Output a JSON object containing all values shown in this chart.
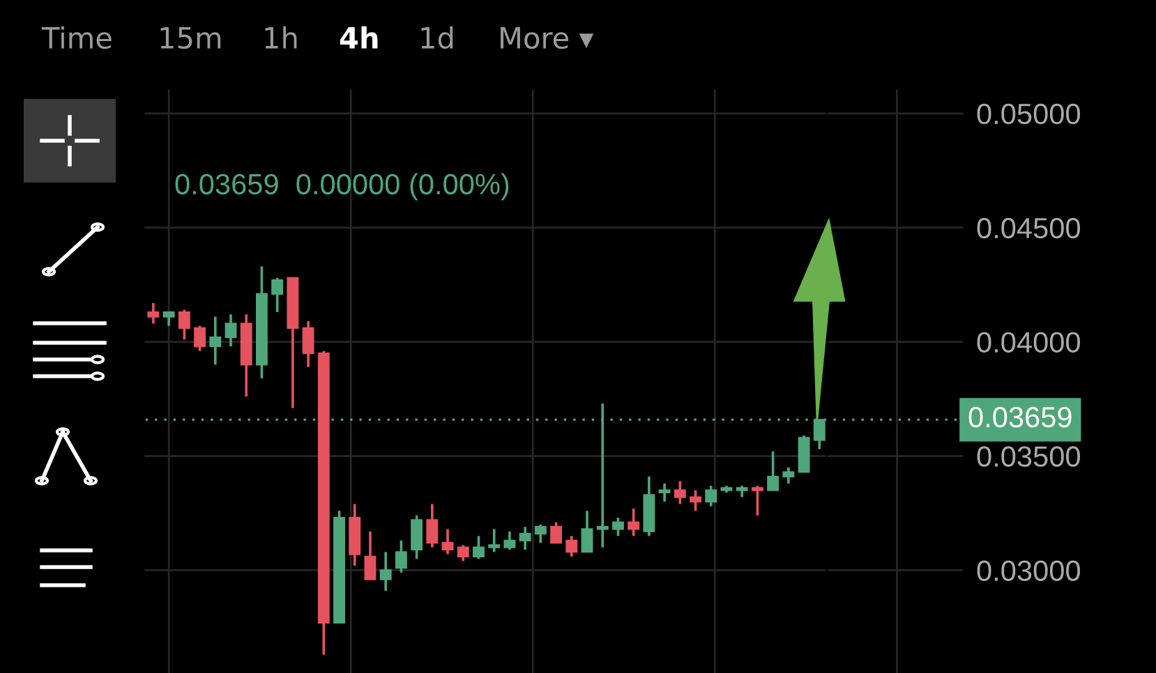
{
  "chart_data": {
    "type": "candlestick",
    "subtitle": "0.03659  0.00000 (0.00%)",
    "annotations": [
      "Time",
      "15m",
      "1h",
      "4h",
      "1d",
      "More ▾"
    ],
    "categories": [
      null,
      null,
      null,
      null,
      null,
      null,
      null,
      null,
      null,
      null,
      null,
      null,
      null,
      null,
      null,
      null,
      null,
      null,
      null,
      null,
      null,
      null,
      null,
      null,
      null,
      null,
      null,
      null,
      null,
      null,
      null,
      null,
      null,
      null,
      null,
      null,
      null,
      null,
      null,
      null,
      null,
      null,
      null,
      null
    ],
    "ohlc": [
      [
        0.0413,
        0.0417,
        0.0408,
        0.0411
      ],
      [
        0.0411,
        0.0413,
        0.0407,
        0.0413
      ],
      [
        0.0413,
        0.0414,
        0.0401,
        0.0406
      ],
      [
        0.0406,
        0.0407,
        0.0396,
        0.0398
      ],
      [
        0.0398,
        0.0411,
        0.039,
        0.0402
      ],
      [
        0.0402,
        0.0412,
        0.0398,
        0.0408
      ],
      [
        0.0408,
        0.0412,
        0.0376,
        0.039
      ],
      [
        0.039,
        0.0433,
        0.0384,
        0.0421
      ],
      [
        0.0421,
        0.0428,
        0.0413,
        0.0427
      ],
      [
        0.0428,
        0.0428,
        0.0371,
        0.0406
      ],
      [
        0.0406,
        0.0409,
        0.0389,
        0.0395
      ],
      [
        0.0395,
        0.0396,
        0.0263,
        0.0277
      ],
      [
        0.0277,
        0.0326,
        0.0277,
        0.0323
      ],
      [
        0.0323,
        0.0329,
        0.0302,
        0.0307
      ],
      [
        0.0306,
        0.0317,
        0.0296,
        0.0296
      ],
      [
        0.0296,
        0.0308,
        0.0291,
        0.03
      ],
      [
        0.0301,
        0.0313,
        0.0299,
        0.0308
      ],
      [
        0.0309,
        0.0324,
        0.0305,
        0.0322
      ],
      [
        0.0322,
        0.0329,
        0.031,
        0.0312
      ],
      [
        0.0312,
        0.0318,
        0.0307,
        0.0309
      ],
      [
        0.031,
        0.0311,
        0.0304,
        0.0306
      ],
      [
        0.0306,
        0.0315,
        0.0305,
        0.031
      ],
      [
        0.031,
        0.0318,
        0.0308,
        0.0311
      ],
      [
        0.031,
        0.0317,
        0.0309,
        0.0313
      ],
      [
        0.0313,
        0.0319,
        0.0309,
        0.0316
      ],
      [
        0.0316,
        0.032,
        0.0312,
        0.0319
      ],
      [
        0.0319,
        0.0321,
        0.0312,
        0.0312
      ],
      [
        0.0313,
        0.0315,
        0.0306,
        0.0308
      ],
      [
        0.0308,
        0.0326,
        0.0308,
        0.0318
      ],
      [
        0.0318,
        0.0373,
        0.031,
        0.0319
      ],
      [
        0.0318,
        0.0323,
        0.0315,
        0.0321
      ],
      [
        0.0321,
        0.0327,
        0.0315,
        0.0318
      ],
      [
        0.0317,
        0.0341,
        0.0315,
        0.0333
      ],
      [
        0.0334,
        0.0338,
        0.033,
        0.0335
      ],
      [
        0.0335,
        0.0339,
        0.0329,
        0.0332
      ],
      [
        0.0332,
        0.0335,
        0.0326,
        0.033
      ],
      [
        0.033,
        0.0337,
        0.0328,
        0.0335
      ],
      [
        0.0335,
        0.0337,
        0.0334,
        0.0336
      ],
      [
        0.0335,
        0.0337,
        0.0332,
        0.0336
      ],
      [
        0.0336,
        0.0337,
        0.0324,
        0.0335
      ],
      [
        0.0335,
        0.0352,
        0.0335,
        0.0341
      ],
      [
        0.0341,
        0.0345,
        0.0338,
        0.0343
      ],
      [
        0.0343,
        0.0359,
        0.0343,
        0.0358
      ],
      [
        0.0357,
        0.03659,
        0.0353,
        0.03659
      ]
    ],
    "colors": [
      "#e5535f",
      "#4fa67a",
      "#e5535f",
      "#e5535f",
      "#4fa67a",
      "#4fa67a",
      "#e5535f",
      "#4fa67a",
      "#4fa67a",
      "#e5535f",
      "#e5535f",
      "#e5535f",
      "#4fa67a",
      "#e5535f",
      "#e5535f",
      "#4fa67a",
      "#4fa67a",
      "#4fa67a",
      "#e5535f",
      "#e5535f",
      "#e5535f",
      "#4fa67a",
      "#4fa67a",
      "#4fa67a",
      "#4fa67a",
      "#4fa67a",
      "#e5535f",
      "#e5535f",
      "#4fa67a",
      "#4fa67a",
      "#4fa67a",
      "#e5535f",
      "#4fa67a",
      "#4fa67a",
      "#e5535f",
      "#e5535f",
      "#4fa67a",
      "#4fa67a",
      "#4fa67a",
      "#e5535f",
      "#4fa67a",
      "#4fa67a",
      "#4fa67a",
      "#4fa67a"
    ],
    "ylim": [
      0.0255,
      0.051
    ],
    "yticks": [
      {
        "value": 0.03,
        "label": "0.03000"
      },
      {
        "value": 0.035,
        "label": "0.03500"
      },
      {
        "value": 0.04,
        "label": "0.04000"
      },
      {
        "value": 0.045,
        "label": "0.04500"
      },
      {
        "value": 0.05,
        "label": "0.05000"
      }
    ],
    "ref_lines": [
      {
        "axis": "y",
        "value": 0.03659,
        "label": "0.03659",
        "color": "#4fa67a",
        "line_style": "dotted"
      }
    ],
    "grid": true,
    "tick_labels": "y"
  }
}
